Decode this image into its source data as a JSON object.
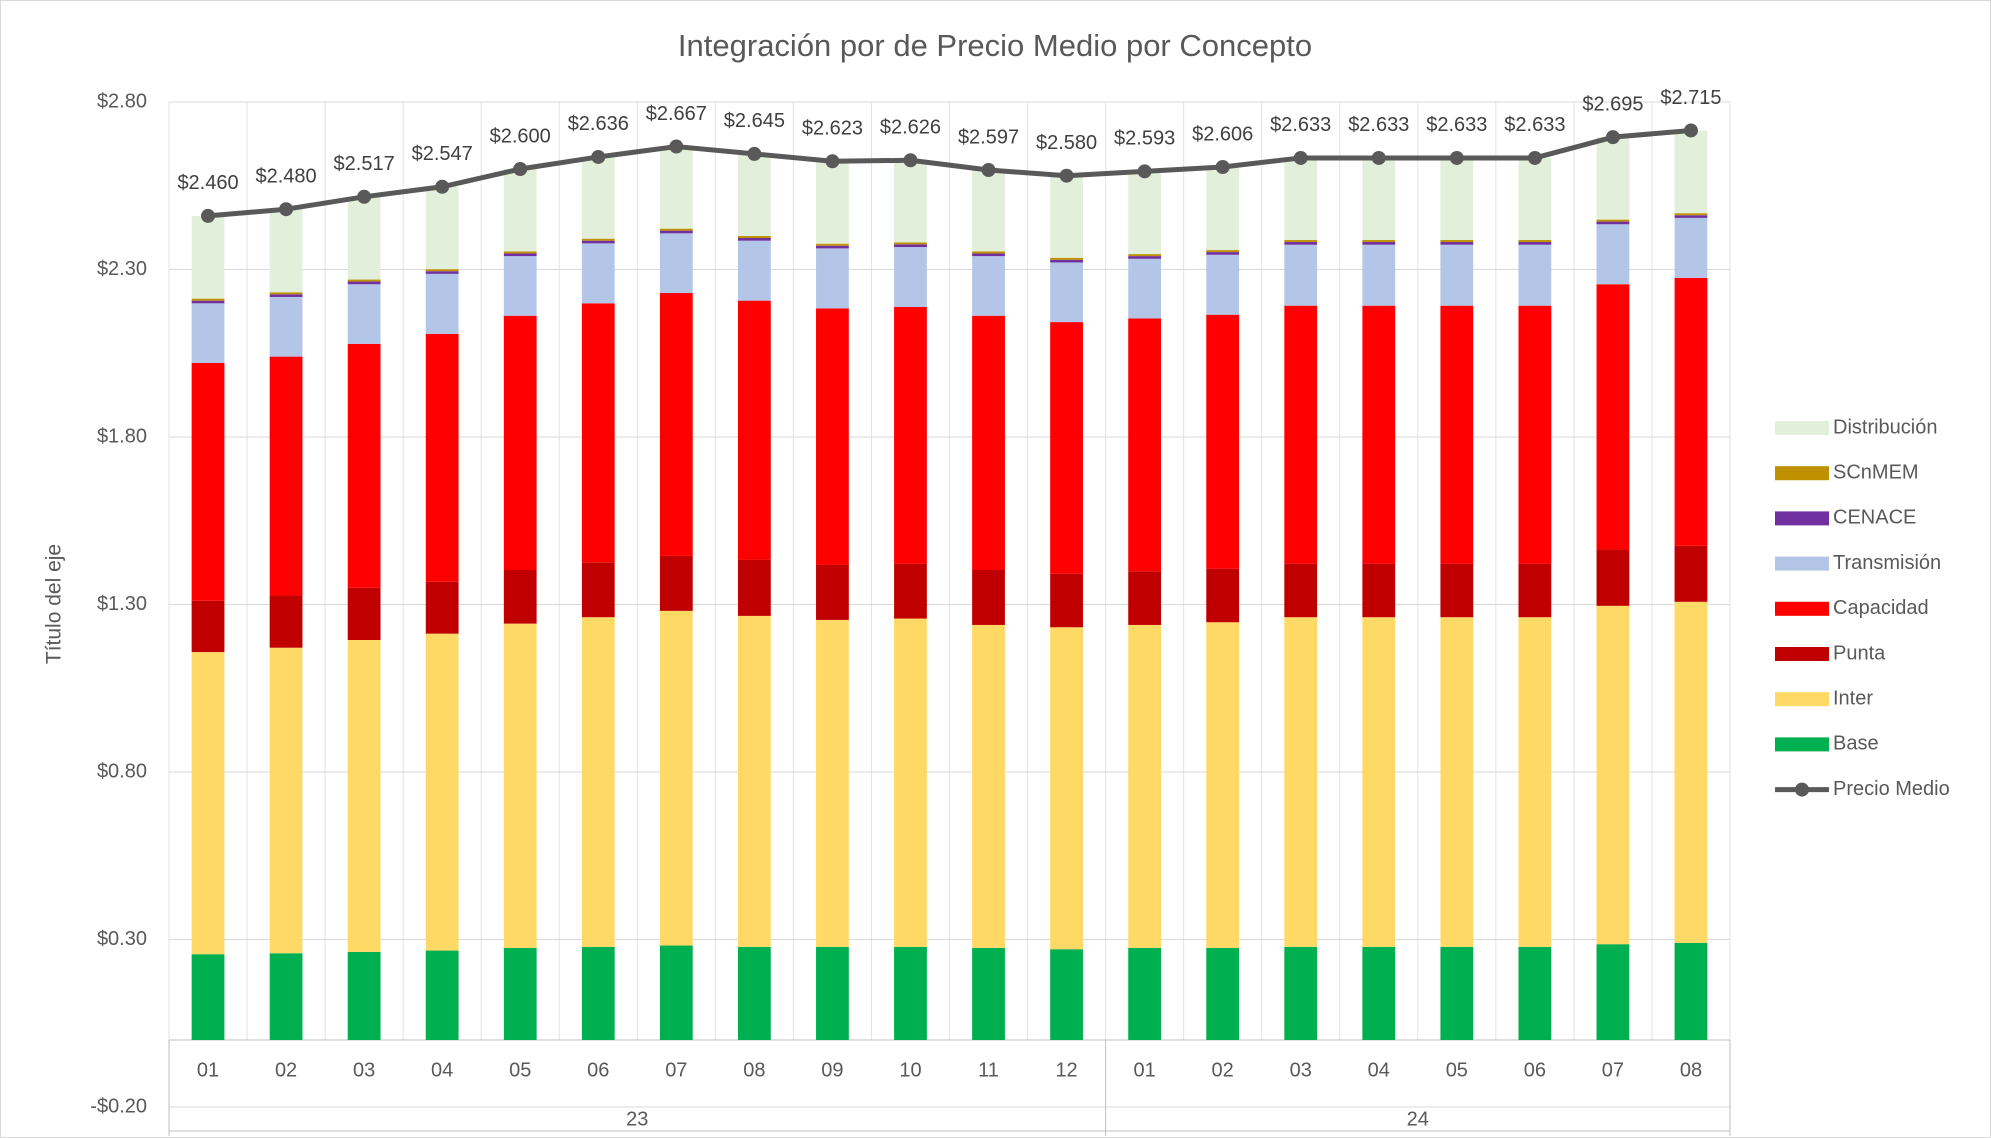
{
  "chart_data": {
    "type": "stacked_bar_line",
    "title": "Integración por de Precio Medio por Concepto",
    "y_axis_label": "Título del eje",
    "categories": [
      "01",
      "02",
      "03",
      "04",
      "05",
      "06",
      "07",
      "08",
      "09",
      "10",
      "11",
      "12",
      "01",
      "02",
      "03",
      "04",
      "05",
      "06",
      "07",
      "08"
    ],
    "groups": [
      {
        "label": "23",
        "count": 12
      },
      {
        "label": "24",
        "count": 8
      }
    ],
    "ylim": [
      -0.2,
      2.8
    ],
    "yticks": [
      {
        "value": -0.2,
        "label": "-$0.20"
      },
      {
        "value": 0.3,
        "label": "$0.30"
      },
      {
        "value": 0.8,
        "label": "$0.80"
      },
      {
        "value": 1.3,
        "label": "$1.30"
      },
      {
        "value": 1.8,
        "label": "$1.80"
      },
      {
        "value": 2.3,
        "label": "$2.30"
      },
      {
        "value": 2.8,
        "label": "$2.80"
      }
    ],
    "grid": true,
    "legend": "right",
    "series": [
      {
        "name": "Base",
        "type": "bar",
        "color": "#00b050",
        "values": [
          0.256,
          0.259,
          0.263,
          0.267,
          0.275,
          0.278,
          0.282,
          0.278,
          0.278,
          0.278,
          0.275,
          0.271,
          0.275,
          0.275,
          0.278,
          0.278,
          0.278,
          0.278,
          0.286,
          0.29
        ]
      },
      {
        "name": "Inter",
        "type": "bar",
        "color": "#ffd966",
        "values": [
          0.902,
          0.912,
          0.931,
          0.946,
          0.968,
          0.984,
          0.999,
          0.988,
          0.976,
          0.98,
          0.964,
          0.961,
          0.964,
          0.972,
          0.984,
          0.984,
          0.984,
          0.984,
          1.01,
          1.018
        ]
      },
      {
        "name": "Punta",
        "type": "bar",
        "color": "#c00000",
        "values": [
          0.153,
          0.156,
          0.156,
          0.155,
          0.16,
          0.164,
          0.164,
          0.168,
          0.164,
          0.164,
          0.164,
          0.16,
          0.16,
          0.16,
          0.16,
          0.16,
          0.16,
          0.16,
          0.168,
          0.167
        ]
      },
      {
        "name": "Capacidad",
        "type": "bar",
        "color": "#ff0000",
        "values": [
          0.71,
          0.713,
          0.728,
          0.74,
          0.759,
          0.773,
          0.785,
          0.773,
          0.766,
          0.766,
          0.759,
          0.751,
          0.755,
          0.758,
          0.77,
          0.77,
          0.77,
          0.77,
          0.792,
          0.8
        ]
      },
      {
        "name": "Transmisión",
        "type": "bar",
        "color": "#b4c6e7",
        "values": [
          0.178,
          0.178,
          0.178,
          0.179,
          0.178,
          0.179,
          0.178,
          0.179,
          0.179,
          0.179,
          0.178,
          0.178,
          0.178,
          0.179,
          0.182,
          0.182,
          0.182,
          0.182,
          0.179,
          0.179
        ]
      },
      {
        "name": "CENACE",
        "type": "bar",
        "color": "#7030a0",
        "values": [
          0.008,
          0.008,
          0.008,
          0.008,
          0.008,
          0.008,
          0.008,
          0.008,
          0.008,
          0.008,
          0.008,
          0.008,
          0.008,
          0.008,
          0.008,
          0.008,
          0.008,
          0.008,
          0.008,
          0.008
        ]
      },
      {
        "name": "SCnMEM",
        "type": "bar",
        "color": "#bf9000",
        "values": [
          0.006,
          0.006,
          0.006,
          0.006,
          0.006,
          0.006,
          0.006,
          0.006,
          0.006,
          0.006,
          0.006,
          0.006,
          0.006,
          0.006,
          0.006,
          0.006,
          0.006,
          0.006,
          0.006,
          0.006
        ]
      },
      {
        "name": "Distribución",
        "type": "bar",
        "color": "#e2efda",
        "values": [
          0.247,
          0.248,
          0.247,
          0.246,
          0.246,
          0.244,
          0.245,
          0.245,
          0.246,
          0.245,
          0.243,
          0.245,
          0.247,
          0.248,
          0.245,
          0.245,
          0.245,
          0.245,
          0.246,
          0.247
        ]
      },
      {
        "name": "Precio Medio",
        "type": "line",
        "color": "#595959",
        "values": [
          2.46,
          2.48,
          2.517,
          2.547,
          2.6,
          2.636,
          2.667,
          2.645,
          2.623,
          2.626,
          2.597,
          2.58,
          2.593,
          2.606,
          2.633,
          2.633,
          2.633,
          2.633,
          2.695,
          2.715
        ],
        "value_labels": [
          "$2.460",
          "$2.480",
          "$2.517",
          "$2.547",
          "$2.600",
          "$2.636",
          "$2.667",
          "$2.645",
          "$2.623",
          "$2.626",
          "$2.597",
          "$2.580",
          "$2.593",
          "$2.606",
          "$2.633",
          "$2.633",
          "$2.633",
          "$2.633",
          "$2.695",
          "$2.715"
        ]
      }
    ]
  }
}
